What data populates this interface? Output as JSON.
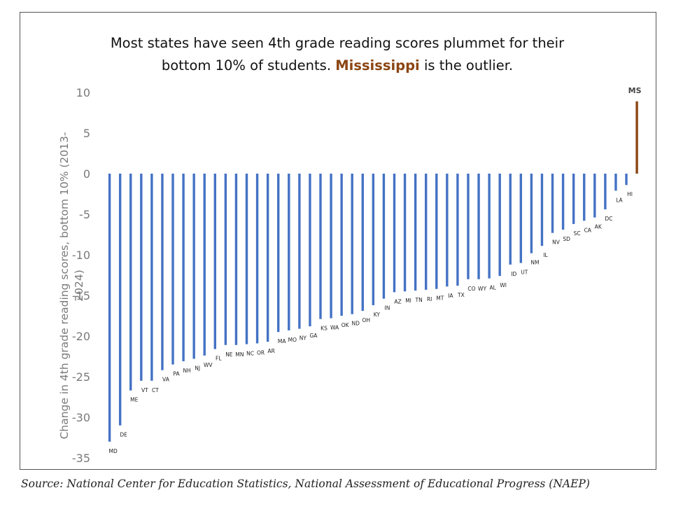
{
  "chart_data": {
    "type": "bar",
    "title_part1": "Most states have seen 4th grade reading scores plummet for their",
    "title_part2": "bottom 10% of students.",
    "title_highlight": "Mississippi",
    "title_part3": "is the outlier.",
    "ylabel_line1": "Change in 4th grade reading scores, bottom 10% (2013-",
    "ylabel_line2": "2024)",
    "xlabel": "",
    "ylim": [
      -35,
      10
    ],
    "yticks": [
      10,
      5,
      0,
      -5,
      -10,
      -15,
      -20,
      -25,
      -30,
      -35
    ],
    "grid": false,
    "legend": "none",
    "categories": [
      "MD",
      "DE",
      "ME",
      "VT",
      "CT",
      "VA",
      "PA",
      "NH",
      "NJ",
      "WV",
      "FL",
      "NE",
      "MN",
      "NC",
      "OR",
      "AR",
      "MA",
      "MO",
      "NY",
      "GA",
      "KS",
      "WA",
      "OK",
      "ND",
      "OH",
      "KY",
      "IN",
      "AZ",
      "MI",
      "TN",
      "RI",
      "MT",
      "IA",
      "TX",
      "CO",
      "WY",
      "AL",
      "WI",
      "ID",
      "UT",
      "NM",
      "IL",
      "NV",
      "SD",
      "SC",
      "CA",
      "AK",
      "DC",
      "LA",
      "HI",
      "MS"
    ],
    "values": [
      -33,
      -31,
      -26.7,
      -25.5,
      -25.5,
      -24.2,
      -23.5,
      -23.1,
      -22.8,
      -22.4,
      -21.6,
      -21.1,
      -21.1,
      -21,
      -20.9,
      -20.7,
      -19.5,
      -19.3,
      -19.1,
      -18.8,
      -17.9,
      -17.8,
      -17.5,
      -17.3,
      -16.9,
      -16.2,
      -15.4,
      -14.6,
      -14.5,
      -14.4,
      -14.3,
      -14.2,
      -13.9,
      -13.8,
      -13,
      -13,
      -12.9,
      -12.6,
      -11.2,
      -11,
      -9.8,
      -8.9,
      -7.3,
      -6.9,
      -6.2,
      -5.8,
      -5.4,
      -4.4,
      -2.1,
      -1.4,
      8.9
    ],
    "bar_color": "#4472C4",
    "highlight_color": "#8B4513"
  },
  "source": "Source: National Center for Education Statistics, National Assessment of Educational Progress (NAEP)"
}
